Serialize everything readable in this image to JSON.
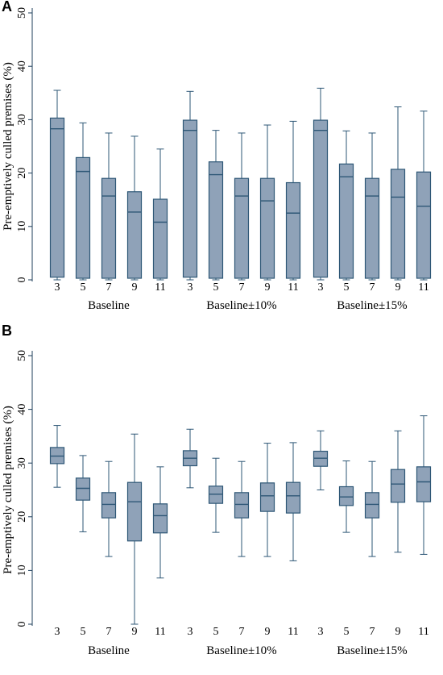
{
  "figure": {
    "colors": {
      "box_fill": "#8fa2b8",
      "box_stroke": "#2e5776",
      "axis": "#1f3f5b",
      "text": "#000000"
    }
  },
  "chart_data": [
    {
      "panel": "A",
      "type": "boxplot",
      "ylabel": "Pre-emptively culled premises (%)",
      "ylim": [
        0,
        50
      ],
      "yticks": [
        0,
        10,
        20,
        30,
        40,
        50
      ],
      "grid": false,
      "groups": [
        {
          "label": "Baseline",
          "categories": [
            "3",
            "5",
            "7",
            "9",
            "11"
          ],
          "boxes": [
            {
              "min": 0,
              "q1": 0.5,
              "median": 28.3,
              "q3": 30.3,
              "max": 35.5
            },
            {
              "min": 0,
              "q1": 0.3,
              "median": 20.3,
              "q3": 22.9,
              "max": 29.4
            },
            {
              "min": 0,
              "q1": 0.3,
              "median": 15.7,
              "q3": 19.0,
              "max": 27.5
            },
            {
              "min": 0,
              "q1": 0.3,
              "median": 12.7,
              "q3": 16.5,
              "max": 26.9
            },
            {
              "min": 0,
              "q1": 0.3,
              "median": 10.8,
              "q3": 15.1,
              "max": 24.5
            }
          ]
        },
        {
          "label": "Baseline±10%",
          "categories": [
            "3",
            "5",
            "7",
            "9",
            "11"
          ],
          "boxes": [
            {
              "min": 0,
              "q1": 0.5,
              "median": 28.0,
              "q3": 29.9,
              "max": 35.3
            },
            {
              "min": 0,
              "q1": 0.3,
              "median": 19.7,
              "q3": 22.1,
              "max": 28.0
            },
            {
              "min": 0,
              "q1": 0.3,
              "median": 15.7,
              "q3": 19.0,
              "max": 27.5
            },
            {
              "min": 0,
              "q1": 0.3,
              "median": 14.8,
              "q3": 19.0,
              "max": 29.0
            },
            {
              "min": 0,
              "q1": 0.3,
              "median": 12.5,
              "q3": 18.2,
              "max": 29.7
            }
          ]
        },
        {
          "label": "Baseline±15%",
          "categories": [
            "3",
            "5",
            "7",
            "9",
            "11"
          ],
          "boxes": [
            {
              "min": 0,
              "q1": 0.5,
              "median": 28.0,
              "q3": 29.9,
              "max": 35.9
            },
            {
              "min": 0,
              "q1": 0.3,
              "median": 19.3,
              "q3": 21.7,
              "max": 27.9
            },
            {
              "min": 0,
              "q1": 0.3,
              "median": 15.7,
              "q3": 19.0,
              "max": 27.5
            },
            {
              "min": 0,
              "q1": 0.3,
              "median": 15.5,
              "q3": 20.7,
              "max": 32.4
            },
            {
              "min": 0,
              "q1": 0.3,
              "median": 13.8,
              "q3": 20.2,
              "max": 31.6
            }
          ]
        }
      ]
    },
    {
      "panel": "B",
      "type": "boxplot",
      "ylabel": "Pre-emptively culled premises (%)",
      "ylim": [
        0,
        50
      ],
      "yticks": [
        0,
        10,
        20,
        30,
        40,
        50
      ],
      "grid": false,
      "groups": [
        {
          "label": "Baseline",
          "categories": [
            "3",
            "5",
            "7",
            "9",
            "11"
          ],
          "boxes": [
            {
              "min": 25.5,
              "q1": 29.9,
              "median": 31.3,
              "q3": 32.9,
              "max": 37.0
            },
            {
              "min": 17.2,
              "q1": 23.1,
              "median": 25.3,
              "q3": 27.2,
              "max": 31.4
            },
            {
              "min": 12.6,
              "q1": 19.8,
              "median": 22.3,
              "q3": 24.5,
              "max": 30.3
            },
            {
              "min": 0.0,
              "q1": 15.5,
              "median": 22.8,
              "q3": 26.4,
              "max": 35.4
            },
            {
              "min": 8.6,
              "q1": 17.0,
              "median": 20.2,
              "q3": 22.4,
              "max": 29.3
            }
          ]
        },
        {
          "label": "Baseline±10%",
          "categories": [
            "3",
            "5",
            "7",
            "9",
            "11"
          ],
          "boxes": [
            {
              "min": 25.4,
              "q1": 29.5,
              "median": 30.9,
              "q3": 32.3,
              "max": 36.3
            },
            {
              "min": 17.1,
              "q1": 22.5,
              "median": 24.2,
              "q3": 25.7,
              "max": 30.9
            },
            {
              "min": 12.6,
              "q1": 19.8,
              "median": 22.3,
              "q3": 24.5,
              "max": 30.3
            },
            {
              "min": 12.6,
              "q1": 21.0,
              "median": 23.9,
              "q3": 26.3,
              "max": 33.7
            },
            {
              "min": 11.8,
              "q1": 20.7,
              "median": 23.9,
              "q3": 26.4,
              "max": 33.8
            }
          ]
        },
        {
          "label": "Baseline±15%",
          "categories": [
            "3",
            "5",
            "7",
            "9",
            "11"
          ],
          "boxes": [
            {
              "min": 25.0,
              "q1": 29.4,
              "median": 30.9,
              "q3": 32.2,
              "max": 36.0
            },
            {
              "min": 17.1,
              "q1": 22.1,
              "median": 23.7,
              "q3": 25.6,
              "max": 30.4
            },
            {
              "min": 12.6,
              "q1": 19.8,
              "median": 22.3,
              "q3": 24.5,
              "max": 30.3
            },
            {
              "min": 13.4,
              "q1": 22.7,
              "median": 26.1,
              "q3": 28.8,
              "max": 36.0
            },
            {
              "min": 13.0,
              "q1": 22.8,
              "median": 26.5,
              "q3": 29.3,
              "max": 38.8
            }
          ]
        }
      ]
    }
  ]
}
